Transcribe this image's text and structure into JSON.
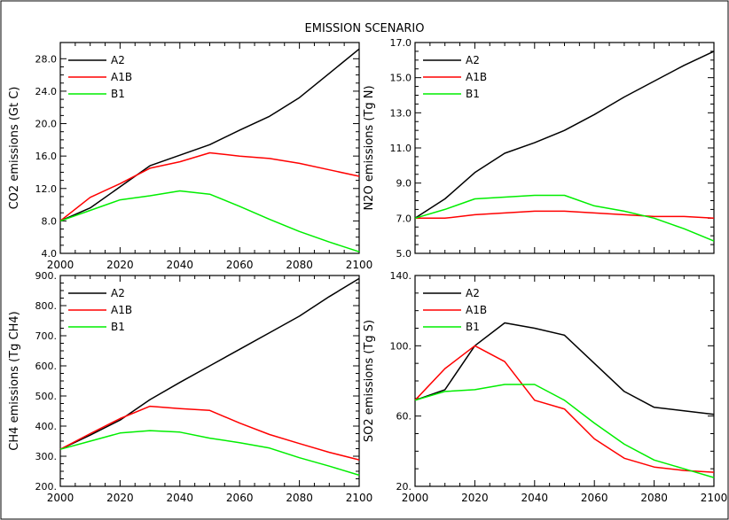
{
  "figure_title": "EMISSION SCENARIO",
  "colors": {
    "A2": "#000000",
    "A1B": "#ff0000",
    "B1": "#00ee00"
  },
  "chart_data": [
    {
      "type": "line",
      "title": "",
      "xlabel": "",
      "ylabel": "CO2 emissions (Gt C)",
      "x": [
        2000,
        2010,
        2020,
        2030,
        2040,
        2050,
        2060,
        2070,
        2080,
        2090,
        2100
      ],
      "xlim": [
        2000,
        2100
      ],
      "xticks": [
        "2000",
        "2020",
        "2040",
        "2060",
        "2080",
        "2100"
      ],
      "ylim": [
        4,
        30
      ],
      "yticks": [
        "4.0",
        "8.0",
        "12.0",
        "16.0",
        "20.0",
        "24.0",
        "28.0"
      ],
      "legend": "top-left",
      "series": [
        {
          "name": "A2",
          "values": [
            8.0,
            9.6,
            12.2,
            14.8,
            16.1,
            17.4,
            19.2,
            20.9,
            23.2,
            26.2,
            29.2
          ]
        },
        {
          "name": "A1B",
          "values": [
            8.0,
            10.9,
            12.6,
            14.5,
            15.3,
            16.4,
            16.0,
            15.7,
            15.1,
            14.3,
            13.5
          ]
        },
        {
          "name": "B1",
          "values": [
            8.0,
            9.3,
            10.6,
            11.1,
            11.7,
            11.3,
            9.8,
            8.2,
            6.7,
            5.4,
            4.2
          ]
        }
      ]
    },
    {
      "type": "line",
      "title": "",
      "xlabel": "",
      "ylabel": "N2O emissions (Tg N)",
      "x": [
        2000,
        2010,
        2020,
        2030,
        2040,
        2050,
        2060,
        2070,
        2080,
        2090,
        2100
      ],
      "xlim": [
        2000,
        2100
      ],
      "xticks": [],
      "ylim": [
        5,
        17
      ],
      "yticks": [
        "5.0",
        "7.0",
        "9.0",
        "11.0",
        "13.0",
        "15.0",
        "17.0"
      ],
      "legend": "top-left",
      "series": [
        {
          "name": "A2",
          "values": [
            7.0,
            8.1,
            9.6,
            10.7,
            11.3,
            12.0,
            12.9,
            13.9,
            14.8,
            15.7,
            16.5
          ]
        },
        {
          "name": "A1B",
          "values": [
            7.0,
            7.0,
            7.2,
            7.3,
            7.4,
            7.4,
            7.3,
            7.2,
            7.1,
            7.1,
            7.0
          ]
        },
        {
          "name": "B1",
          "values": [
            7.0,
            7.5,
            8.1,
            8.2,
            8.3,
            8.3,
            7.7,
            7.4,
            7.0,
            6.4,
            5.7
          ]
        }
      ]
    },
    {
      "type": "line",
      "title": "",
      "xlabel": "",
      "ylabel": "CH4 emissions (Tg CH4)",
      "x": [
        2000,
        2010,
        2020,
        2030,
        2040,
        2050,
        2060,
        2070,
        2080,
        2090,
        2100
      ],
      "xlim": [
        2000,
        2100
      ],
      "xticks": [
        "2000",
        "2020",
        "2040",
        "2060",
        "2080",
        "2100"
      ],
      "ylim": [
        200,
        900
      ],
      "yticks": [
        "200.",
        "300.",
        "400.",
        "500.",
        "600.",
        "700.",
        "800.",
        "900."
      ],
      "legend": "top-left",
      "series": [
        {
          "name": "A2",
          "values": [
            323,
            370,
            420,
            488,
            545,
            600,
            655,
            710,
            765,
            830,
            890
          ]
        },
        {
          "name": "A1B",
          "values": [
            323,
            375,
            425,
            466,
            458,
            452,
            410,
            372,
            342,
            313,
            288
          ]
        },
        {
          "name": "B1",
          "values": [
            323,
            350,
            377,
            385,
            380,
            360,
            345,
            327,
            295,
            267,
            237
          ]
        }
      ]
    },
    {
      "type": "line",
      "title": "",
      "xlabel": "",
      "ylabel": "SO2 emissions (Tg S)",
      "x": [
        2000,
        2010,
        2020,
        2030,
        2040,
        2050,
        2060,
        2070,
        2080,
        2090,
        2100
      ],
      "xlim": [
        2000,
        2100
      ],
      "xticks": [
        "2000",
        "2020",
        "2040",
        "2060",
        "2080",
        "2100"
      ],
      "ylim": [
        20,
        140
      ],
      "yticks": [
        "20.",
        "60.",
        "100.",
        "140."
      ],
      "legend": "top-left",
      "series": [
        {
          "name": "A2",
          "values": [
            69,
            75,
            100,
            113,
            110,
            106,
            90,
            74,
            65,
            63,
            61
          ]
        },
        {
          "name": "A1B",
          "values": [
            69,
            87,
            100,
            91,
            69,
            64,
            47,
            36,
            31,
            29,
            28
          ]
        },
        {
          "name": "B1",
          "values": [
            69,
            74,
            75,
            78,
            78,
            69,
            56,
            44,
            35,
            30,
            25
          ]
        }
      ]
    }
  ]
}
